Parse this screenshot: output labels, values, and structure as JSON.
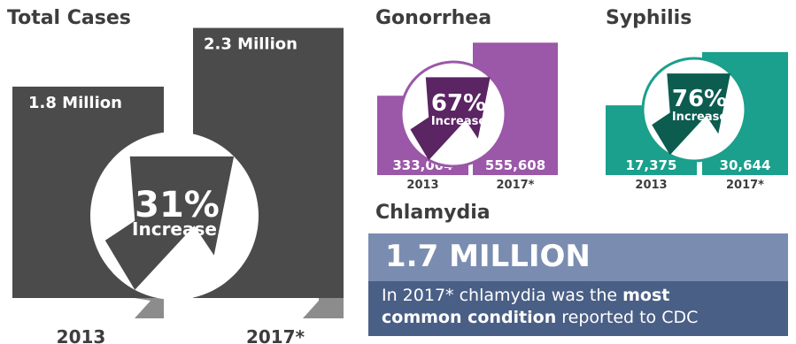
{
  "titles": {
    "total": "Total Cases",
    "gonorrhea": "Gonorrhea",
    "syphilis": "Syphilis",
    "chlamydia": "Chlamydia"
  },
  "chart_data": [
    {
      "type": "bar",
      "title": "Total Cases",
      "categories": [
        "2013",
        "2017*"
      ],
      "values": [
        1.8,
        2.3
      ],
      "data_labels": [
        "1.8 Million",
        "2.3 Million"
      ],
      "unit": "Million",
      "change_label": "31%",
      "change_caption": "Increase"
    },
    {
      "type": "bar",
      "title": "Gonorrhea",
      "categories": [
        "2013",
        "2017*"
      ],
      "values": [
        333004,
        555608
      ],
      "data_labels": [
        "333,004",
        "555,608"
      ],
      "change_label": "67%",
      "change_caption": "Increase"
    },
    {
      "type": "bar",
      "title": "Syphilis",
      "categories": [
        "2013",
        "2017*"
      ],
      "values": [
        17375,
        30644
      ],
      "data_labels": [
        "17,375",
        "30,644"
      ],
      "change_label": "76%",
      "change_caption": "Increase"
    }
  ],
  "chlamydia": {
    "headline": "1.7 MILLION",
    "desc_start": "In 2017* chlamydia was the ",
    "desc_bold1": "most",
    "desc_bold2": "common condition",
    "desc_end": " reported to CDC"
  },
  "colors": {
    "total_bar": "#4b4b4b",
    "total_bar_shade": "#8c8c8c",
    "gonorrhea_light": "#9b57a8",
    "gonorrhea_dark": "#5b2463",
    "syphilis_light": "#1aa08c",
    "syphilis_dark": "#0c5c50",
    "chlamydia_light": "#7a8db0",
    "chlamydia_dark": "#4a5f85"
  }
}
